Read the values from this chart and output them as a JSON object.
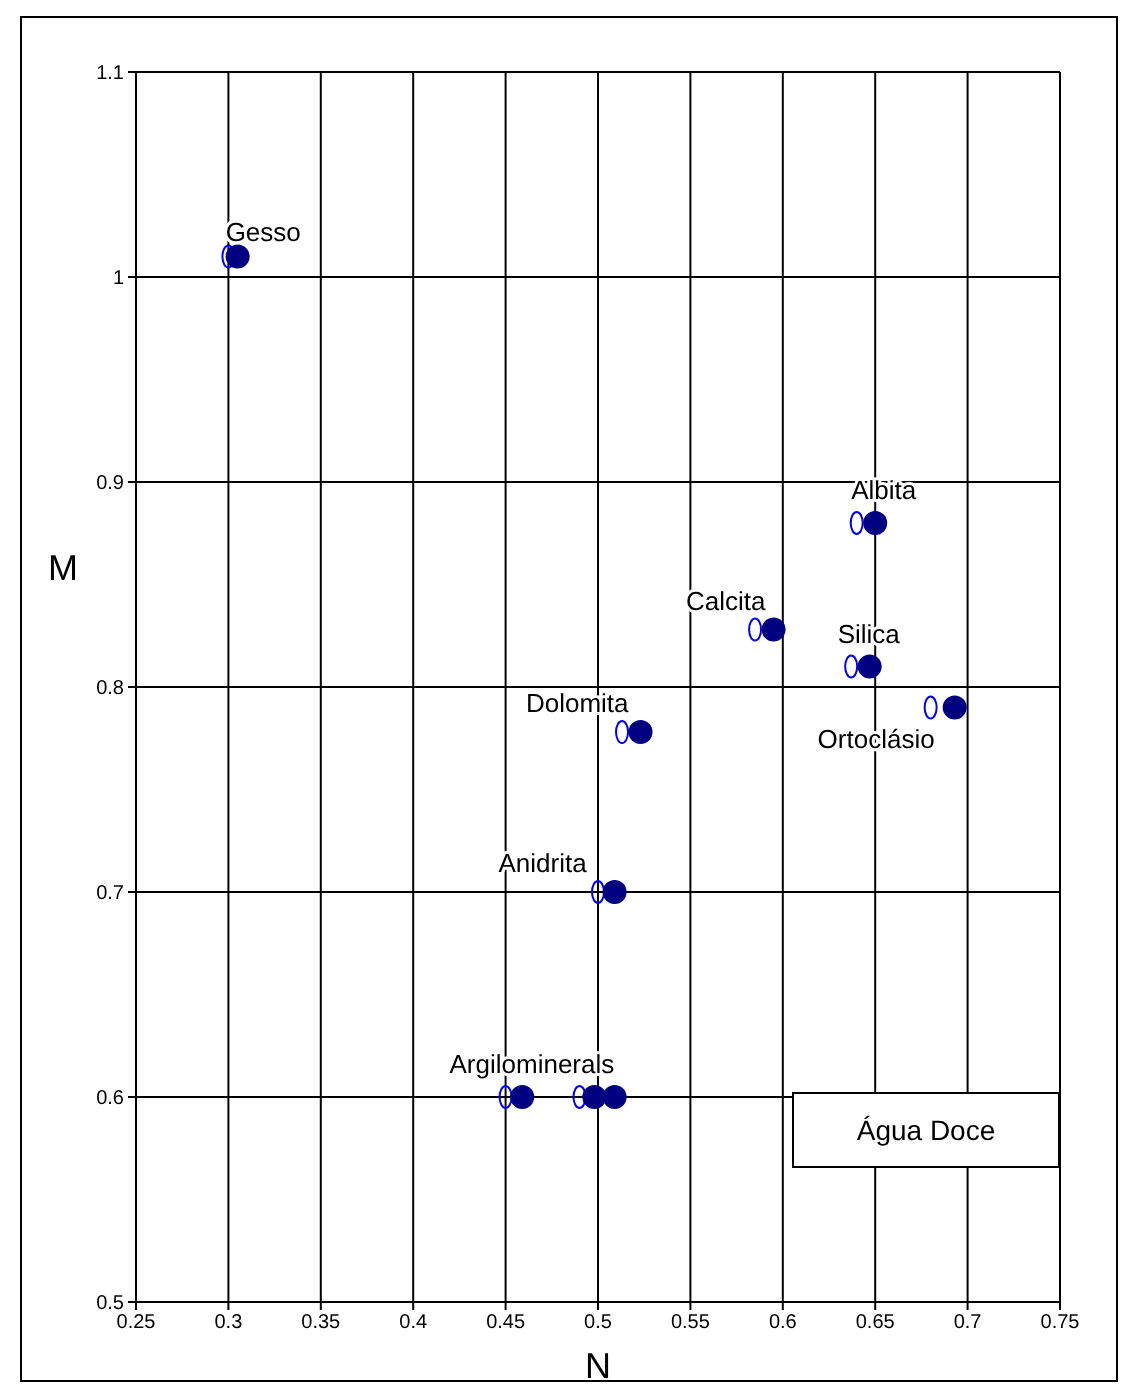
{
  "chart_data": {
    "type": "scatter",
    "xlabel": "N",
    "ylabel": "M",
    "series": [
      {
        "color": "#0000ff",
        "x": [
          0.3,
          0.64,
          0.585,
          0.637,
          0.68,
          0.513,
          0.5,
          0.45,
          0.49
        ],
        "values": [
          1.01,
          0.88,
          0.828,
          0.81,
          0.79,
          0.778,
          0.7,
          0.6,
          0.6
        ]
      },
      {
        "color": "#000080",
        "x": [
          0.305,
          0.65,
          0.595,
          0.647,
          0.693,
          0.523,
          0.509,
          0.459,
          0.498,
          0.509
        ],
        "values": [
          1.01,
          0.88,
          0.828,
          0.81,
          0.79,
          0.778,
          0.7,
          0.6,
          0.6,
          0.6
        ]
      }
    ],
    "xlim": [
      0.25,
      0.75
    ],
    "xticks": [
      0.25,
      0.3,
      0.35,
      0.4,
      0.45,
      0.5,
      0.55,
      0.6,
      0.65,
      0.7,
      0.75
    ],
    "ylim": [
      0.5,
      1.1
    ],
    "yticks": [
      0.5,
      0.6,
      0.7,
      0.8,
      0.9,
      1,
      1.1
    ],
    "grid": true,
    "marker": "circle",
    "annotations": [
      {
        "text": "Gesso",
        "x": 0.305,
        "y": 1.01
      },
      {
        "text": "Albita",
        "x": 0.65,
        "y": 0.88
      },
      {
        "text": "Calcita",
        "x": 0.595,
        "y": 0.828
      },
      {
        "text": "Silica",
        "x": 0.647,
        "y": 0.81
      },
      {
        "text": "Ortoclásio",
        "x": 0.693,
        "y": 0.79
      },
      {
        "text": "Dolomita",
        "x": 0.523,
        "y": 0.778
      },
      {
        "text": "Anidrita",
        "x": 0.509,
        "y": 0.7
      },
      {
        "text": "Argilominerals",
        "x": 0.498,
        "y": 0.6
      },
      "Água Doce"
    ]
  }
}
